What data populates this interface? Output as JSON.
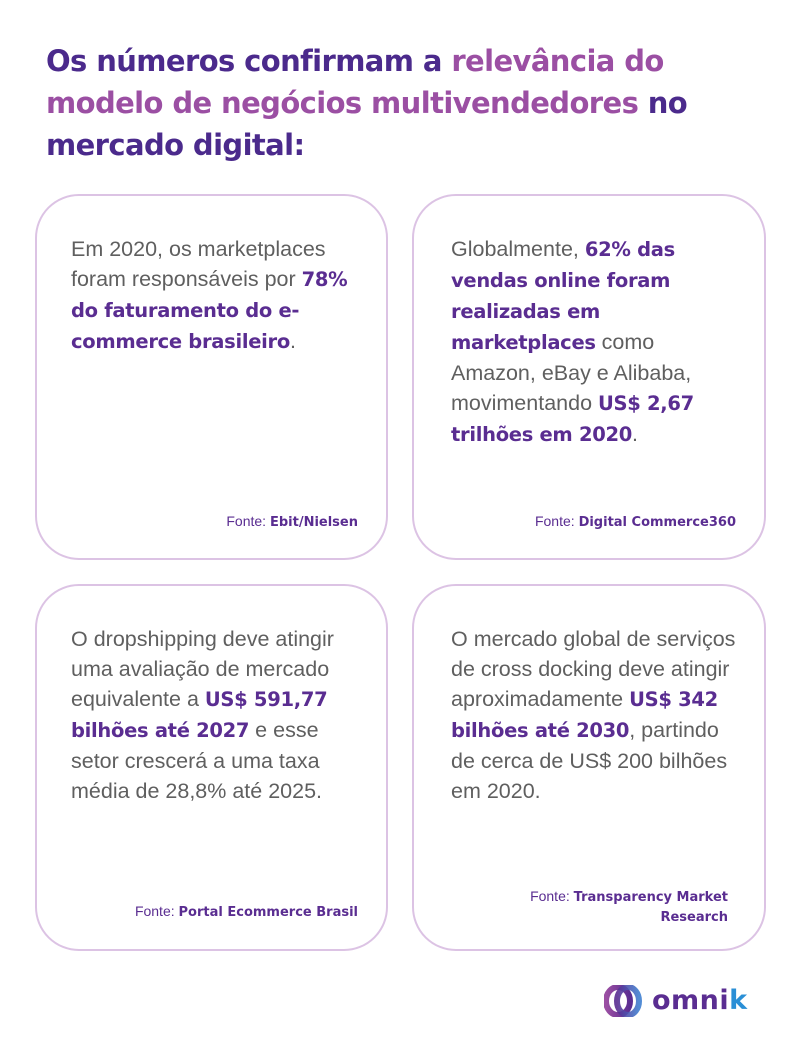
{
  "header": {
    "title_part1": "Os números confirmam a ",
    "title_highlight": "relevância do modelo de negócios multivendedores",
    "title_part2": " no mercado digital:"
  },
  "cards": [
    {
      "segments": [
        {
          "text": "Em 2020, os marketplaces foram responsáveis por ",
          "bold": false
        },
        {
          "text": "78% do faturamento do e-commerce brasileiro",
          "bold": true
        },
        {
          "text": ".",
          "bold": false
        }
      ],
      "source_label": "Fonte: ",
      "source_name": "Ebit/Nielsen"
    },
    {
      "segments": [
        {
          "text": "Globalmente, ",
          "bold": false
        },
        {
          "text": "62% das vendas online foram realizadas em marketplaces",
          "bold": true
        },
        {
          "text": " como Amazon, eBay e Alibaba, movimentando ",
          "bold": false
        },
        {
          "text": "US$ 2,67 trilhões em 2020",
          "bold": true
        },
        {
          "text": ".",
          "bold": false
        }
      ],
      "source_label": "Fonte: ",
      "source_name": "Digital Commerce360"
    },
    {
      "segments": [
        {
          "text": "O dropshipping deve atingir uma avaliação de mercado equivalente a ",
          "bold": false
        },
        {
          "text": "US$ 591,77 bilhões até 2027",
          "bold": true
        },
        {
          "text": " e esse setor crescerá a uma taxa média de 28,8% até 2025.",
          "bold": false
        }
      ],
      "source_label": "Fonte: ",
      "source_name": "Portal Ecommerce Brasil"
    },
    {
      "segments": [
        {
          "text": "O mercado global de serviços de cross docking deve atingir aproximadamente ",
          "bold": false
        },
        {
          "text": "US$ 342 bilhões até 2030",
          "bold": true
        },
        {
          "text": ", partindo de cerca de US$ 200 bilhões em 2020.",
          "bold": false
        }
      ],
      "source_label": "Fonte: ",
      "source_name": "Transparency Market Research"
    }
  ],
  "logo": {
    "word_main": "omni",
    "word_accent": "k",
    "colors": {
      "purple": "#5a2d91",
      "blue": "#2a8fd6",
      "pink": "#9b4fa3"
    }
  },
  "colors": {
    "title": "#4b2a8c",
    "title_highlight": "#9b4fa3",
    "body_text": "#5f5f5f",
    "bold_text": "#5a2d91",
    "card_border": "#dcc3e4"
  }
}
